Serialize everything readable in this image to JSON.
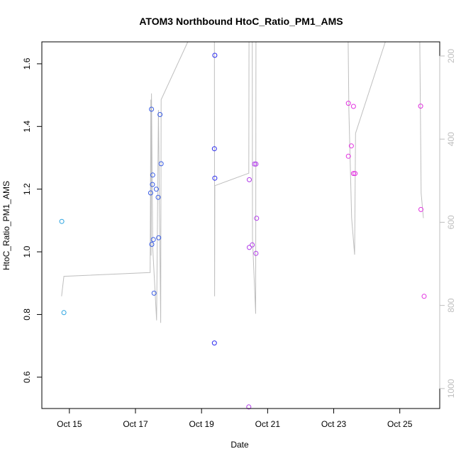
{
  "chart_data": {
    "type": "scatter",
    "title": "ATOM3 Northbound HtoC_Ratio_PM1_AMS",
    "xlabel": "Date",
    "ylabel": "HtoC_Ratio_PM1_AMS",
    "x_ticks": [
      "Oct 15",
      "Oct 17",
      "Oct 19",
      "Oct 21",
      "Oct 23",
      "Oct 25"
    ],
    "y_ticks": [
      "0.6",
      "0.8",
      "1.0",
      "1.2",
      "1.4",
      "1.6"
    ],
    "xlim": [
      "2016-10-14 04:00",
      "2016-10-26 05:00"
    ],
    "ylim": [
      0.5,
      1.67
    ],
    "y2_ticks": [
      "200",
      "400",
      "600",
      "800",
      "1000"
    ],
    "y2lim": [
      1048,
      166
    ],
    "y2_color": "#bebebe",
    "grid": false,
    "legend": "none",
    "scatter": {
      "marker": "open-circle",
      "points": [
        {
          "x": "2016-10-14 18:30",
          "y": 1.097,
          "color": "#29a3e0"
        },
        {
          "x": "2016-10-14 20:00",
          "y": 0.806,
          "color": "#29a3e0"
        },
        {
          "x": "2016-10-17 11:00",
          "y": 1.188,
          "color": "#3a5ee6"
        },
        {
          "x": "2016-10-17 11:40",
          "y": 1.455,
          "color": "#3a5ee6"
        },
        {
          "x": "2016-10-17 11:50",
          "y": 1.024,
          "color": "#3a5ee6"
        },
        {
          "x": "2016-10-17 12:20",
          "y": 1.215,
          "color": "#3a5ee6"
        },
        {
          "x": "2016-10-17 12:30",
          "y": 1.245,
          "color": "#3a5ee6"
        },
        {
          "x": "2016-10-17 13:00",
          "y": 1.039,
          "color": "#3a5ee6"
        },
        {
          "x": "2016-10-17 13:30",
          "y": 0.868,
          "color": "#3a5ee6"
        },
        {
          "x": "2016-10-17 15:10",
          "y": 1.2,
          "color": "#3a5ee6"
        },
        {
          "x": "2016-10-17 16:30",
          "y": 1.174,
          "color": "#3a5ee6"
        },
        {
          "x": "2016-10-17 16:50",
          "y": 1.045,
          "color": "#3a5ee6"
        },
        {
          "x": "2016-10-17 17:50",
          "y": 1.438,
          "color": "#3a5ee6"
        },
        {
          "x": "2016-10-17 18:40",
          "y": 1.281,
          "color": "#3a5ee6"
        },
        {
          "x": "2016-10-19 09:40",
          "y": 1.627,
          "color": "#2b2bf0"
        },
        {
          "x": "2016-10-19 09:20",
          "y": 1.329,
          "color": "#2b2bf0"
        },
        {
          "x": "2016-10-19 09:40",
          "y": 1.235,
          "color": "#2b2bf0"
        },
        {
          "x": "2016-10-19 09:20",
          "y": 0.709,
          "color": "#2b2bf0"
        },
        {
          "x": "2016-10-20 10:40",
          "y": 1.23,
          "color": "#b03ae8"
        },
        {
          "x": "2016-10-20 10:40",
          "y": 1.014,
          "color": "#b03ae8"
        },
        {
          "x": "2016-10-20 10:20",
          "y": 0.505,
          "color": "#b03ae8"
        },
        {
          "x": "2016-10-20 12:50",
          "y": 1.022,
          "color": "#b03ae8"
        },
        {
          "x": "2016-10-20 14:30",
          "y": 1.28,
          "color": "#b03ae8"
        },
        {
          "x": "2016-10-20 15:30",
          "y": 1.28,
          "color": "#b03ae8"
        },
        {
          "x": "2016-10-20 16:00",
          "y": 1.107,
          "color": "#b03ae8"
        },
        {
          "x": "2016-10-20 15:30",
          "y": 0.995,
          "color": "#b03ae8"
        },
        {
          "x": "2016-10-23 10:40",
          "y": 1.474,
          "color": "#e232e0"
        },
        {
          "x": "2016-10-23 10:40",
          "y": 1.305,
          "color": "#e232e0"
        },
        {
          "x": "2016-10-23 12:50",
          "y": 1.338,
          "color": "#e232e0"
        },
        {
          "x": "2016-10-23 14:20",
          "y": 1.464,
          "color": "#e232e0"
        },
        {
          "x": "2016-10-23 14:20",
          "y": 1.25,
          "color": "#e232e0"
        },
        {
          "x": "2016-10-23 15:30",
          "y": 1.25,
          "color": "#e232e0"
        },
        {
          "x": "2016-10-25 15:10",
          "y": 1.465,
          "color": "#e232e0"
        },
        {
          "x": "2016-10-25 15:20",
          "y": 1.135,
          "color": "#e232e0"
        },
        {
          "x": "2016-10-25 17:40",
          "y": 0.858,
          "color": "#e232e0"
        }
      ]
    },
    "line_y2": {
      "color": "#bebebe",
      "segments": [
        [
          {
            "x": "2016-10-14 18:20",
            "y": 778
          },
          {
            "x": "2016-10-14 20:00",
            "y": 730
          },
          {
            "x": "2016-10-17 10:40",
            "y": 721
          },
          {
            "x": "2016-10-17 10:50",
            "y": 605
          },
          {
            "x": "2016-10-17 11:00",
            "y": 430
          },
          {
            "x": "2016-10-17 11:10",
            "y": 305
          },
          {
            "x": "2016-10-17 11:20",
            "y": 680
          },
          {
            "x": "2016-10-17 11:40",
            "y": 290
          },
          {
            "x": "2016-10-17 12:30",
            "y": 660
          },
          {
            "x": "2016-10-17 15:20",
            "y": 836
          },
          {
            "x": "2016-10-17 16:40",
            "y": 330
          },
          {
            "x": "2016-10-17 18:20",
            "y": 842
          },
          {
            "x": "2016-10-17 18:40",
            "y": 305
          },
          {
            "x": "2016-10-18 14:00",
            "y": 166
          }
        ],
        [
          {
            "x": "2016-10-19 09:20",
            "y": 166
          },
          {
            "x": "2016-10-19 09:30",
            "y": 778
          },
          {
            "x": "2016-10-19 09:40",
            "y": 512
          },
          {
            "x": "2016-10-20 10:20",
            "y": 482
          },
          {
            "x": "2016-10-20 10:30",
            "y": 166
          }
        ],
        [
          {
            "x": "2016-10-20 12:50",
            "y": 166
          },
          {
            "x": "2016-10-20 13:00",
            "y": 640
          },
          {
            "x": "2016-10-20 15:20",
            "y": 820
          },
          {
            "x": "2016-10-20 15:30",
            "y": 166
          }
        ],
        [
          {
            "x": "2016-10-23 10:30",
            "y": 166
          },
          {
            "x": "2016-10-23 11:00",
            "y": 330
          },
          {
            "x": "2016-10-23 13:00",
            "y": 590
          },
          {
            "x": "2016-10-23 15:10",
            "y": 678
          },
          {
            "x": "2016-10-23 15:50",
            "y": 386
          },
          {
            "x": "2016-10-24 13:30",
            "y": 166
          }
        ],
        [
          {
            "x": "2016-10-25 14:30",
            "y": 166
          },
          {
            "x": "2016-10-25 15:30",
            "y": 530
          },
          {
            "x": "2016-10-25 17:10",
            "y": 590
          }
        ]
      ]
    }
  }
}
